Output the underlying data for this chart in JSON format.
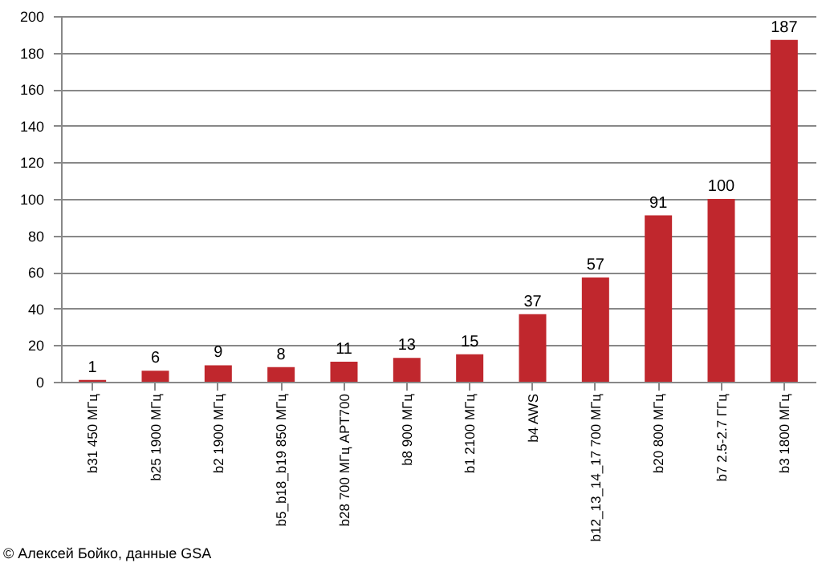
{
  "chart_data": {
    "type": "bar",
    "categories": [
      "b31 450 МГц",
      "b25 1900 МГц",
      "b2 1900 МГц",
      "b5_b18_b19 850 МГц",
      "b28 700 МГц APT700",
      "b8 900 МГц",
      "b1 2100 МГц",
      "b4 AWS",
      "b12_13_14_17 700 МГц",
      "b20 800 МГц",
      "b7 2.5-2.7 ГГц",
      "b3 1800 МГц"
    ],
    "values": [
      1,
      6,
      9,
      8,
      11,
      13,
      15,
      37,
      57,
      91,
      100,
      187
    ],
    "color": "#c0272d",
    "ylim": [
      0,
      200
    ],
    "yticks": [
      0,
      20,
      40,
      60,
      80,
      100,
      120,
      140,
      160,
      180,
      200
    ],
    "grid": "y",
    "data_labels": true,
    "annotations": [
      "© Алексей Бойко, данные GSA"
    ]
  }
}
